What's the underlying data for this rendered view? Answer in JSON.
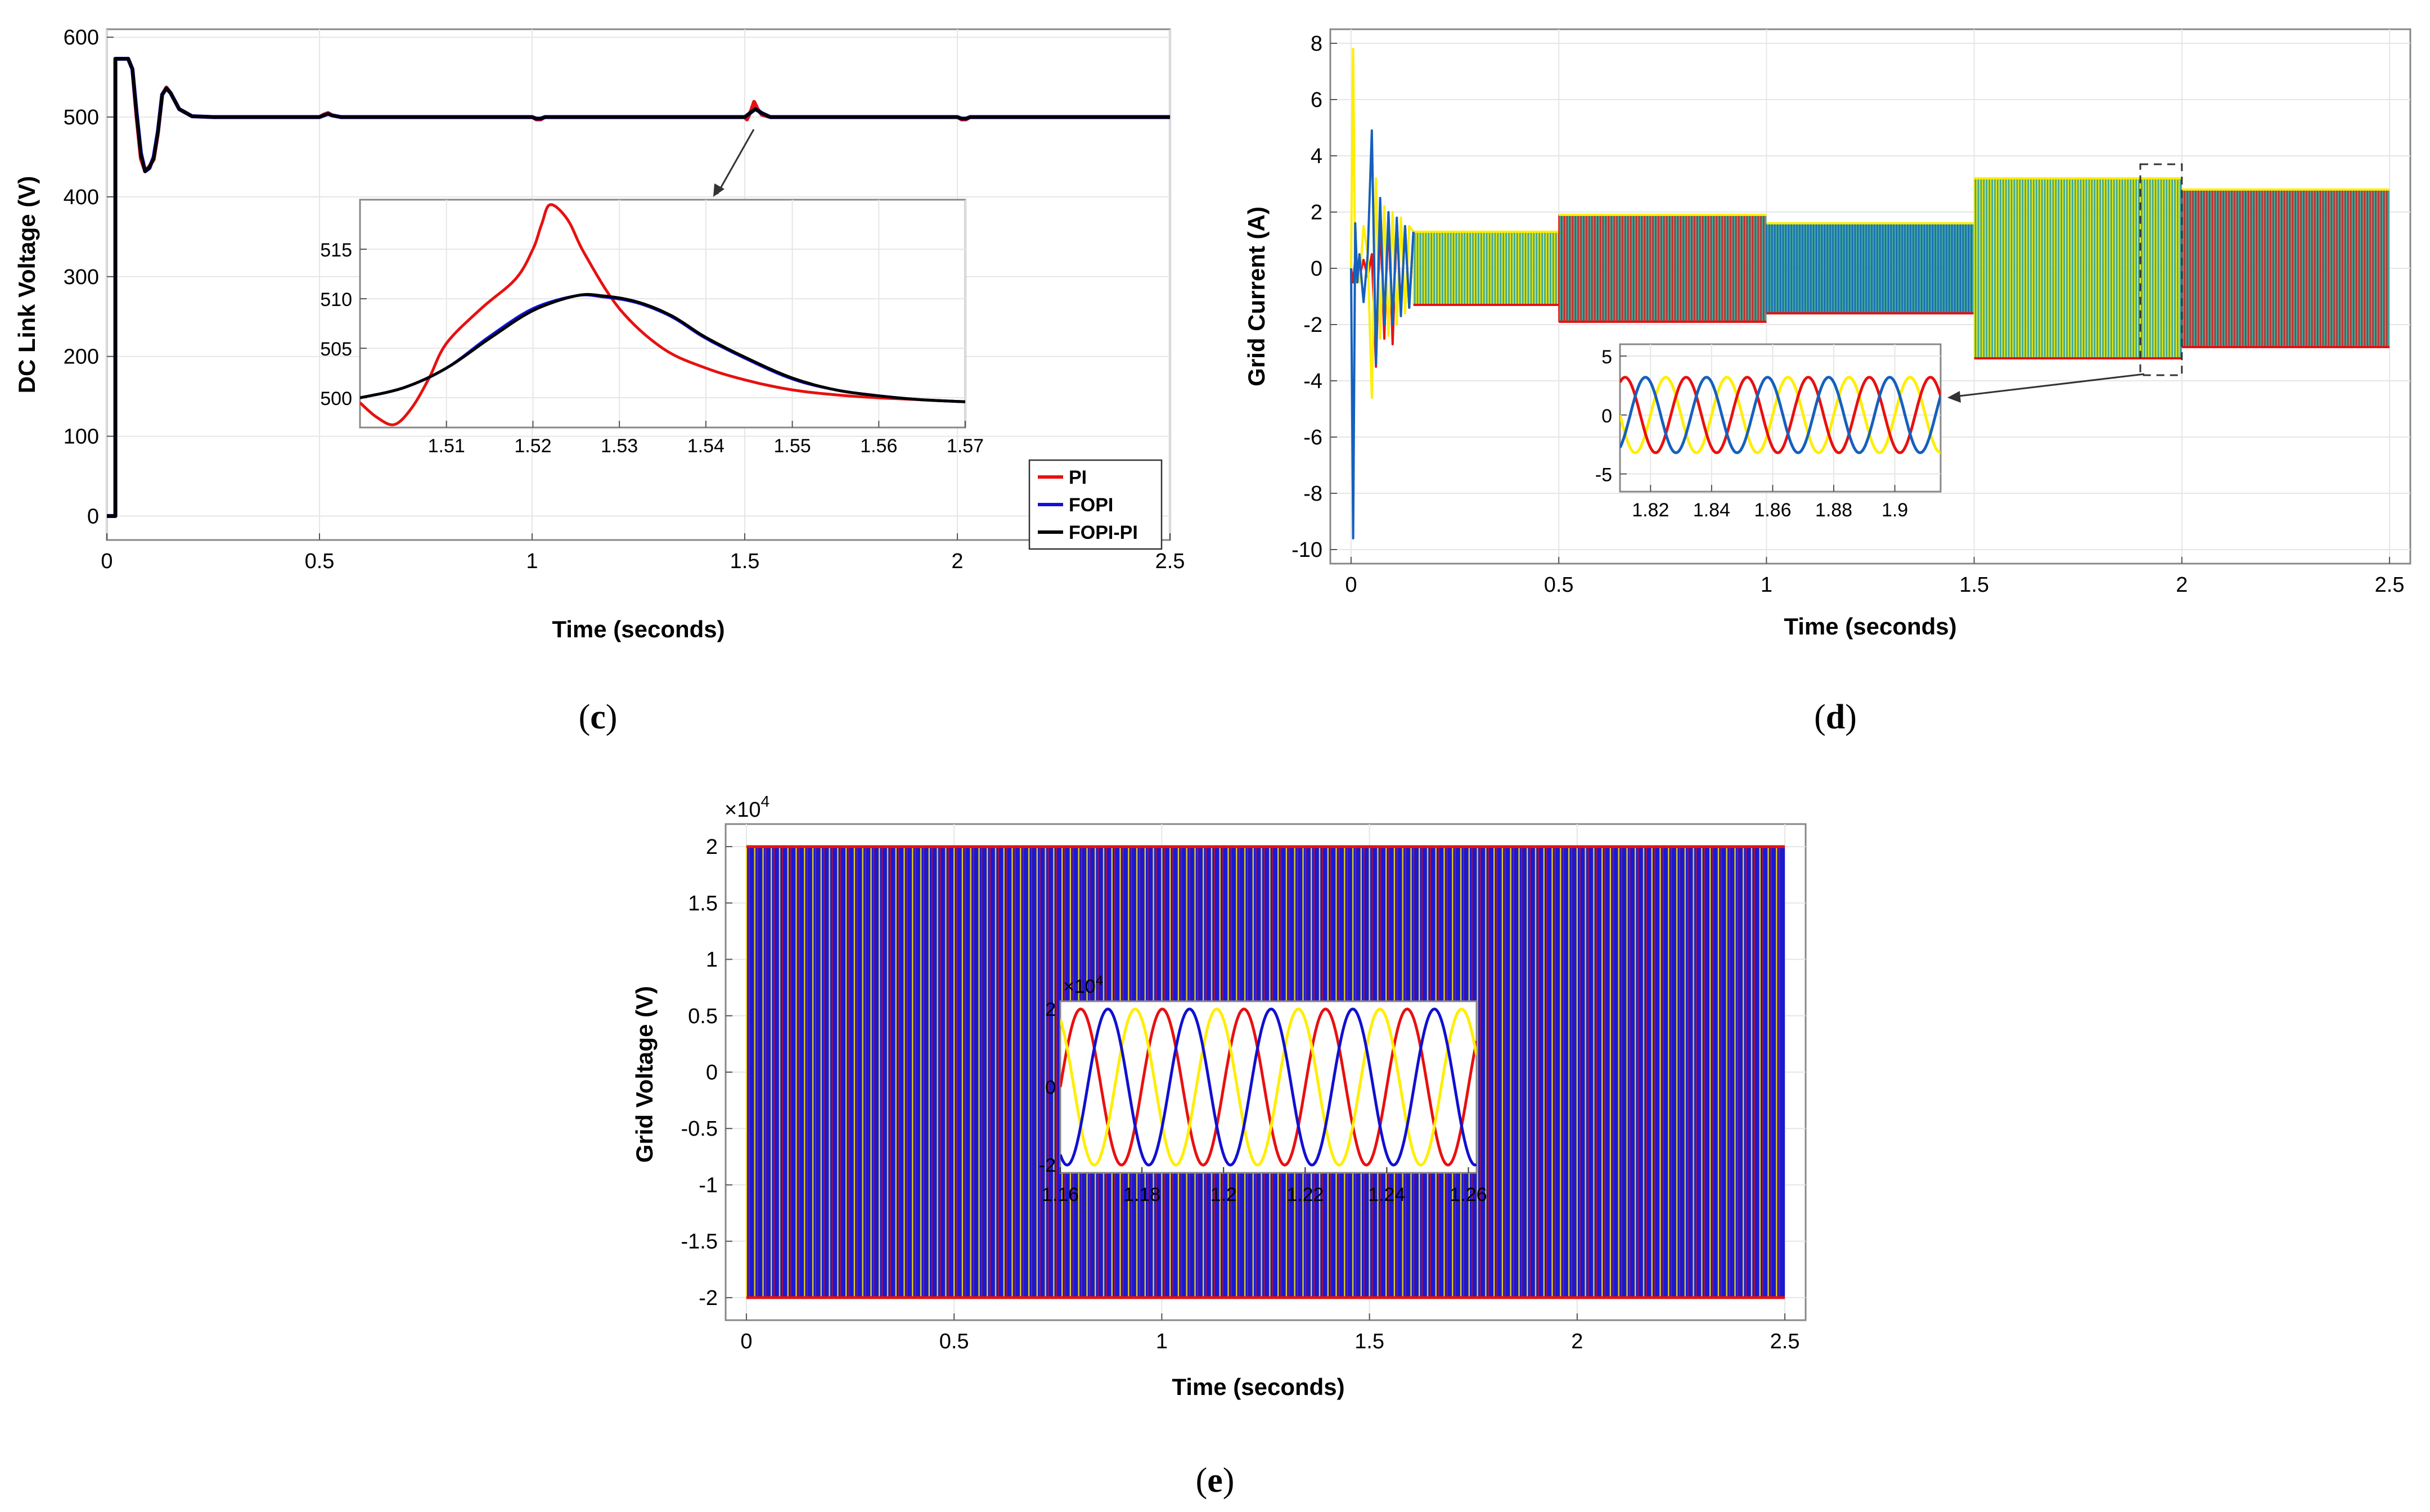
{
  "chart_data": [
    {
      "id": "c",
      "type": "line",
      "caption": "c",
      "xlabel": "Time (seconds)",
      "ylabel": "DC Link Voltage (V)",
      "xlim": [
        0,
        2.5
      ],
      "ylim": [
        -30,
        610
      ],
      "xticks": [
        0,
        0.5,
        1,
        1.5,
        2,
        2.5
      ],
      "xtick_labels": [
        "0",
        "0.5",
        "1",
        "1.5",
        "2",
        "2.5"
      ],
      "yticks": [
        0,
        100,
        200,
        300,
        400,
        500,
        600
      ],
      "ytick_labels": [
        "0",
        "100",
        "200",
        "300",
        "400",
        "500",
        "600"
      ],
      "grid": true,
      "legend_position": "bottom-right",
      "series": [
        {
          "name": "PI",
          "color": "#e81010",
          "x": [
            0,
            0.02,
            0.02,
            0.04,
            0.05,
            0.06,
            0.07,
            0.08,
            0.09,
            0.1,
            0.11,
            0.12,
            0.13,
            0.14,
            0.15,
            0.17,
            0.2,
            0.25,
            0.3,
            0.5,
            0.51,
            0.52,
            0.53,
            0.55,
            1.0,
            1.01,
            1.02,
            1.03,
            1.5,
            1.505,
            1.515,
            1.522,
            1.53,
            1.54,
            1.56,
            1.6,
            2.0,
            2.01,
            2.02,
            2.03,
            2.5
          ],
          "y": [
            0,
            0,
            573,
            573,
            573,
            560,
            500,
            448,
            432,
            438,
            447,
            480,
            528,
            537,
            530,
            510,
            501,
            500,
            500,
            500,
            503,
            505,
            502,
            500,
            500,
            497,
            497,
            500,
            500,
            497,
            508,
            519,
            510,
            503,
            500,
            500,
            500,
            497,
            497,
            500,
            500
          ]
        },
        {
          "name": "FOPI",
          "color": "#1010e0",
          "x": [
            0,
            0.02,
            0.02,
            0.04,
            0.05,
            0.06,
            0.07,
            0.08,
            0.09,
            0.1,
            0.11,
            0.12,
            0.13,
            0.14,
            0.15,
            0.17,
            0.2,
            0.25,
            0.3,
            0.5,
            0.51,
            0.52,
            0.53,
            0.55,
            1.0,
            1.01,
            1.02,
            1.03,
            1.5,
            1.515,
            1.525,
            1.54,
            1.56,
            1.6,
            2.0,
            2.01,
            2.02,
            2.03,
            2.5
          ],
          "y": [
            0,
            0,
            573,
            573,
            573,
            560,
            505,
            455,
            432,
            436,
            450,
            482,
            528,
            536,
            530,
            510,
            501,
            500,
            500,
            500,
            502,
            504,
            502,
            500,
            500,
            498,
            498,
            500,
            500,
            506,
            510,
            505,
            500,
            500,
            500,
            498,
            498,
            500,
            500
          ]
        },
        {
          "name": "FOPI-PI",
          "color": "#000000",
          "x": [
            0,
            0.02,
            0.02,
            0.04,
            0.05,
            0.06,
            0.07,
            0.08,
            0.09,
            0.1,
            0.11,
            0.12,
            0.13,
            0.14,
            0.15,
            0.17,
            0.2,
            0.25,
            0.3,
            0.5,
            0.51,
            0.52,
            0.53,
            0.55,
            1.0,
            1.01,
            1.02,
            1.03,
            1.5,
            1.515,
            1.525,
            1.54,
            1.56,
            1.6,
            2.0,
            2.01,
            2.02,
            2.03,
            2.5
          ],
          "y": [
            0,
            0,
            573,
            573,
            573,
            560,
            503,
            452,
            432,
            437,
            448,
            481,
            528,
            536,
            530,
            510,
            501,
            500,
            500,
            500,
            502,
            504,
            502,
            500,
            500,
            498,
            498,
            500,
            500,
            506,
            510,
            505,
            500,
            500,
            500,
            498,
            498,
            500,
            500
          ]
        }
      ],
      "inset": {
        "xlim": [
          1.5,
          1.57
        ],
        "ylim": [
          497,
          520
        ],
        "xticks": [
          1.51,
          1.52,
          1.53,
          1.54,
          1.55,
          1.56,
          1.57
        ],
        "xtick_labels": [
          "1.51",
          "1.52",
          "1.53",
          "1.54",
          "1.55",
          "1.56",
          "1.57"
        ],
        "yticks": [
          500,
          505,
          510,
          515
        ],
        "ytick_labels": [
          "500",
          "505",
          "510",
          "515"
        ],
        "series": [
          {
            "name": "PI",
            "color": "#e81010",
            "x": [
              1.5,
              1.502,
              1.504,
              1.506,
              1.508,
              1.51,
              1.514,
              1.518,
              1.52,
              1.521,
              1.522,
              1.524,
              1.526,
              1.53,
              1.535,
              1.54,
              1.545,
              1.55,
              1.555,
              1.56,
              1.565,
              1.57
            ],
            "y": [
              499.5,
              498,
              497.3,
              499,
              502,
              505.5,
              509,
              512,
              515,
              517.5,
              519.5,
              518,
              514.5,
              509,
              505,
              503,
              501.7,
              500.8,
              500.3,
              500,
              499.8,
              499.6
            ]
          },
          {
            "name": "FOPI",
            "color": "#1010e0",
            "x": [
              1.5,
              1.505,
              1.51,
              1.515,
              1.52,
              1.525,
              1.528,
              1.532,
              1.536,
              1.54,
              1.545,
              1.55,
              1.555,
              1.56,
              1.565,
              1.57
            ],
            "y": [
              500,
              501,
              503,
              506.2,
              509,
              510.3,
              510.2,
              509.6,
              508.2,
              506,
              503.8,
              501.9,
              500.8,
              500.2,
              499.8,
              499.6
            ]
          },
          {
            "name": "FOPI-PI",
            "color": "#000000",
            "x": [
              1.5,
              1.505,
              1.51,
              1.515,
              1.52,
              1.525,
              1.528,
              1.532,
              1.536,
              1.54,
              1.545,
              1.55,
              1.555,
              1.56,
              1.565,
              1.57
            ],
            "y": [
              500,
              501,
              503,
              506,
              508.8,
              510.3,
              510.3,
              509.7,
              508.3,
              506.1,
              503.9,
              502,
              500.8,
              500.2,
              499.8,
              499.6
            ]
          }
        ]
      }
    },
    {
      "id": "d",
      "type": "line",
      "caption": "d",
      "xlabel": "Time (seconds)",
      "ylabel": "Grid Current (A)",
      "xlim": [
        -0.05,
        2.55
      ],
      "ylim": [
        -10.5,
        8.5
      ],
      "xticks": [
        0,
        0.5,
        1,
        1.5,
        2,
        2.5
      ],
      "xtick_labels": [
        "0",
        "0.5",
        "1",
        "1.5",
        "2",
        "2.5"
      ],
      "yticks": [
        -10,
        -8,
        -6,
        -4,
        -2,
        0,
        2,
        4,
        6,
        8
      ],
      "ytick_labels": [
        "-10",
        "-8",
        "-6",
        "-4",
        "-2",
        "0",
        "2",
        "4",
        "6",
        "8"
      ],
      "grid": true,
      "phase_colors": [
        "#ffee00",
        "#e81010",
        "#1560bd"
      ],
      "fill_color": "#2a9d8f",
      "envelope": [
        {
          "t0": 0.15,
          "t1": 0.5,
          "amplitude": 1.3
        },
        {
          "t0": 0.5,
          "t1": 1.0,
          "amplitude": 1.9
        },
        {
          "t0": 1.0,
          "t1": 1.5,
          "amplitude": 1.6
        },
        {
          "t0": 1.5,
          "t1": 2.0,
          "amplitude": 3.2
        },
        {
          "t0": 2.0,
          "t1": 2.5,
          "amplitude": 2.8
        }
      ],
      "transient": {
        "t": [
          0,
          0.005,
          0.01,
          0.015,
          0.02,
          0.03,
          0.04,
          0.05,
          0.06,
          0.07,
          0.08,
          0.09,
          0.1,
          0.11,
          0.12,
          0.13,
          0.14,
          0.15
        ],
        "yellow": [
          0,
          7.8,
          -0.5,
          0.3,
          -0.5,
          1.5,
          0.5,
          -4.6,
          3.2,
          -2.5,
          2.2,
          -2.4,
          2,
          -2,
          1.8,
          -1.6,
          1.5,
          1.3
        ],
        "blue": [
          0,
          -9.6,
          1.6,
          -0.5,
          0.5,
          -1.2,
          0.5,
          4.9,
          -3.4,
          2.5,
          -2,
          2,
          -2,
          1.8,
          -1.7,
          1.5,
          -1.4,
          1.3
        ],
        "red": [
          0,
          -0.5,
          0.3,
          0.3,
          -0.3,
          0.3,
          -0.3,
          0.5,
          -3.5,
          1.8,
          -2.5,
          1.9,
          -2.7,
          1.7,
          -1.5,
          1.5,
          -1.4,
          1.3
        ]
      },
      "zoom_box": {
        "x": [
          1.9,
          2.0
        ],
        "y": [
          -3.8,
          3.7
        ]
      },
      "inset": {
        "xlim": [
          1.81,
          1.915
        ],
        "ylim": [
          -6.5,
          6
        ],
        "xticks": [
          1.82,
          1.84,
          1.86,
          1.88,
          1.9
        ],
        "xtick_labels": [
          "1.82",
          "1.84",
          "1.86",
          "1.88",
          "1.9"
        ],
        "yticks": [
          -5,
          0,
          5
        ],
        "ytick_labels": [
          "-5",
          "0",
          "5"
        ],
        "amplitude": 3.2,
        "frequency_hz": 50
      }
    },
    {
      "id": "e",
      "type": "line",
      "caption": "e",
      "xlabel": "Time (seconds)",
      "ylabel": "Grid Voltage (V)",
      "multiplier": "×10",
      "multiplier_exp": "4",
      "xlim": [
        -0.05,
        2.55
      ],
      "ylim": [
        -2.2,
        2.2
      ],
      "xticks": [
        0,
        0.5,
        1,
        1.5,
        2,
        2.5
      ],
      "xtick_labels": [
        "0",
        "0.5",
        "1",
        "1.5",
        "2",
        "2.5"
      ],
      "yticks": [
        -2,
        -1.5,
        -1,
        -0.5,
        0,
        0.5,
        1,
        1.5,
        2
      ],
      "ytick_labels": [
        "-2",
        "-1.5",
        "-1",
        "-0.5",
        "0",
        "0.5",
        "1",
        "1.5",
        "2"
      ],
      "grid": true,
      "phase_colors": [
        "#ffee00",
        "#e81010",
        "#1010d0"
      ],
      "amplitude": 2.0,
      "inset": {
        "xlim": [
          1.16,
          1.262
        ],
        "ylim": [
          -2.2,
          2.2
        ],
        "xticks": [
          1.16,
          1.18,
          1.2,
          1.22,
          1.24,
          1.26
        ],
        "xtick_labels": [
          "1.16",
          "1.18",
          "1.2",
          "1.22",
          "1.24",
          "1.26"
        ],
        "yticks": [
          -2,
          0,
          2
        ],
        "ytick_labels": [
          "-2",
          "0",
          "2"
        ],
        "multiplier": "×10",
        "multiplier_exp": "4",
        "frequency_hz": 50
      }
    }
  ]
}
